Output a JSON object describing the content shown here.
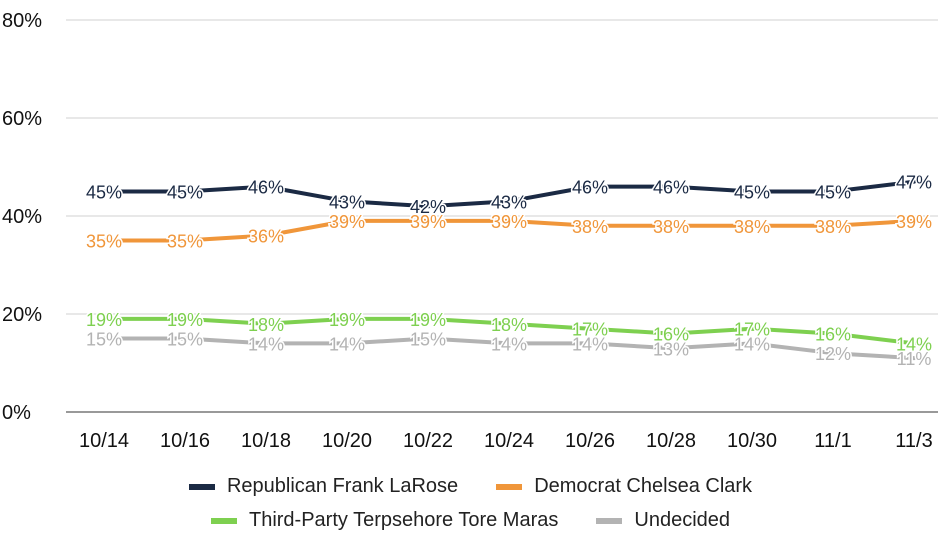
{
  "chart_data": {
    "type": "line",
    "title": "",
    "xlabel": "",
    "ylabel": "",
    "ylim": [
      0,
      80
    ],
    "yticks": [
      "0%",
      "20%",
      "40%",
      "60%",
      "80%"
    ],
    "categories": [
      "10/14",
      "10/16",
      "10/18",
      "10/20",
      "10/22",
      "10/24",
      "10/26",
      "10/28",
      "10/30",
      "11/1",
      "11/3"
    ],
    "grid": true,
    "legend_position": "bottom",
    "series": [
      {
        "name": "Republican Frank LaRose",
        "color": "#1b2a44",
        "values": [
          45,
          45,
          46,
          43,
          42,
          43,
          46,
          46,
          45,
          45,
          47
        ]
      },
      {
        "name": "Democrat Chelsea Clark",
        "color": "#f0963a",
        "values": [
          35,
          35,
          36,
          39,
          39,
          39,
          38,
          38,
          38,
          38,
          39
        ]
      },
      {
        "name": "Third-Party Terpsehore Tore Maras",
        "color": "#7ed050",
        "values": [
          19,
          19,
          18,
          19,
          19,
          18,
          17,
          16,
          17,
          16,
          14
        ]
      },
      {
        "name": "Undecided",
        "color": "#b3b3b3",
        "values": [
          15,
          15,
          14,
          14,
          15,
          14,
          14,
          13,
          14,
          12,
          11
        ]
      }
    ]
  }
}
